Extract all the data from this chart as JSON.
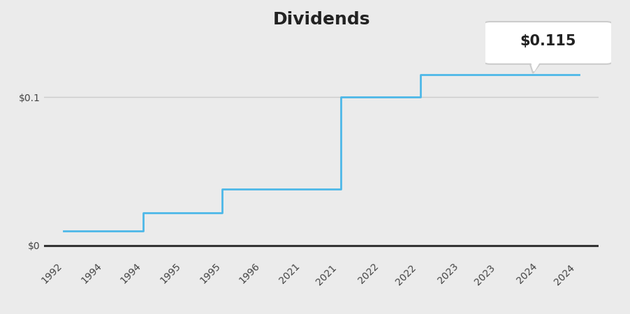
{
  "title": "Dividends",
  "annotation_label": "$0.115",
  "background_color": "#ebebeb",
  "line_color": "#4db8e8",
  "zero_line_color": "#333333",
  "grid_color": "#cccccc",
  "yticks": [
    0.0,
    0.1
  ],
  "ytick_labels": [
    "$0",
    "$0.1"
  ],
  "ylim": [
    -0.008,
    0.14
  ],
  "xtick_labels": [
    "1992",
    "1994",
    "1994",
    "1995",
    "1995",
    "1996",
    "2021",
    "2021 ",
    "2022",
    "2022 ",
    "2023",
    "2023 ",
    "2024",
    "2024 "
  ],
  "x_values": [
    0,
    1,
    2,
    3,
    4,
    5,
    6,
    7,
    8,
    9,
    10,
    11,
    12,
    13
  ],
  "y_values": [
    0.01,
    0.01,
    0.022,
    0.022,
    0.038,
    0.038,
    0.038,
    0.1,
    0.1,
    0.115,
    0.115,
    0.115,
    0.115,
    0.115
  ],
  "title_fontsize": 18,
  "tick_fontsize": 10,
  "annotation_fontsize": 14
}
